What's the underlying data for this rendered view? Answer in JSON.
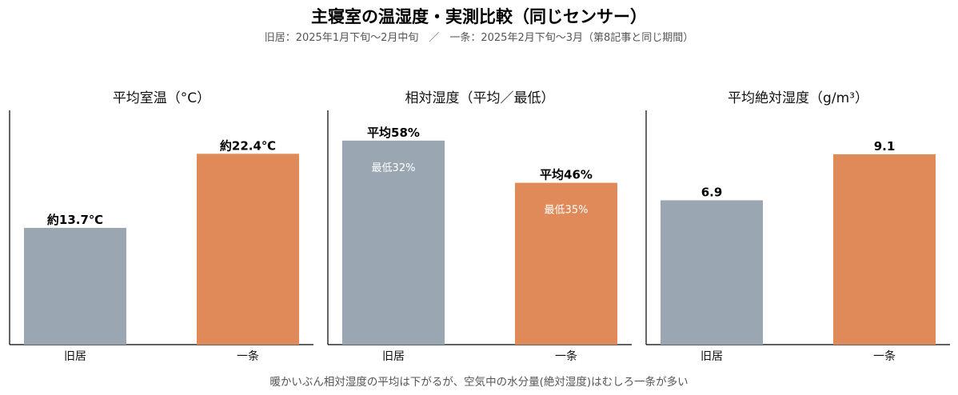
{
  "title": "主寝室の温湿度・実測比較（同じセンサー）",
  "subtitle": "旧居：2025年1月下旬〜2月中旬　／　一条：2025年2月下旬〜3月（第8記事と同じ期間）",
  "footer": "暖かいぶん相対湿度の平均は下がるが、空気中の水分量(絶対湿度)はむしろ一条が多い",
  "colors": {
    "old": "#9aa6b2",
    "new": "#e08a5a",
    "axis": "#000000"
  },
  "chart_data": [
    {
      "type": "bar",
      "title": "平均室温（°C）",
      "categories": [
        "旧居",
        "一条"
      ],
      "values": [
        13.7,
        22.4
      ],
      "data_labels": [
        "約13.7℃",
        "約22.4℃"
      ],
      "inner_labels": [
        "",
        ""
      ],
      "ylim": [
        0,
        27.5
      ]
    },
    {
      "type": "bar",
      "title": "相対湿度（平均／最低）",
      "categories": [
        "旧居",
        "一条"
      ],
      "values": [
        58,
        46
      ],
      "minimums": [
        32,
        35
      ],
      "data_labels": [
        "平均58%",
        "平均46%"
      ],
      "inner_labels": [
        "最低32%",
        "最低35%"
      ],
      "ylim": [
        0,
        66.6
      ]
    },
    {
      "type": "bar",
      "title": "平均絶対湿度（g/m³）",
      "categories": [
        "旧居",
        "一条"
      ],
      "values": [
        6.9,
        9.1
      ],
      "data_labels": [
        "6.9",
        "9.1"
      ],
      "inner_labels": [
        "",
        ""
      ],
      "ylim": [
        0,
        11.2
      ]
    }
  ]
}
